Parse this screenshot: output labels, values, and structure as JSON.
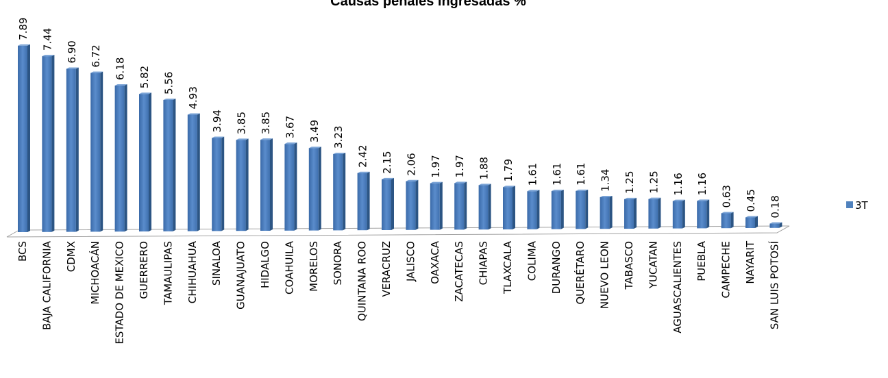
{
  "chart_data": {
    "type": "bar",
    "title": "Causas penales ingresadas %",
    "categories": [
      "BCS",
      "BAJA CALIFORNIA",
      "CDMX",
      "MICHOACÁN",
      "ESTADO DE MEXICO",
      "GUERRERO",
      "TAMAULIPAS",
      "CHIHUAHUA",
      "SINALOA",
      "GUANAJUATO",
      "HIDALGO",
      "COAHUILA",
      "MORELOS",
      "SONORA",
      "QUINTANA ROO",
      "VERACRUZ",
      "JALISCO",
      "OAXACA",
      "ZACATECAS",
      "CHIAPAS",
      "TLAXCALA",
      "COLIMA",
      "DURANGO",
      "QUERÉTARO",
      "NUEVO LEON",
      "TABASCO",
      "YUCATAN",
      "AGUASCALIENTES",
      "PUEBLA",
      "CAMPECHE",
      "NAYARIT",
      "SAN LUIS POTOSÍ"
    ],
    "series": [
      {
        "name": "3T",
        "color": "#4f81bd",
        "values": [
          7.89,
          7.44,
          6.9,
          6.72,
          6.18,
          5.82,
          5.56,
          4.93,
          3.94,
          3.85,
          3.85,
          3.67,
          3.49,
          3.23,
          2.42,
          2.15,
          2.06,
          1.97,
          1.97,
          1.88,
          1.79,
          1.61,
          1.61,
          1.61,
          1.34,
          1.25,
          1.25,
          1.16,
          1.16,
          0.63,
          0.45,
          0.18
        ],
        "value_labels": [
          "7.89",
          "7.44",
          "6.90",
          "6.72",
          "6.18",
          "5.82",
          "5.56",
          "4.93",
          "3.94",
          "3.85",
          "3.85",
          "3.67",
          "3.49",
          "3.23",
          "2.42",
          "2.15",
          "2.06",
          "1.97",
          "1.97",
          "1.88",
          "1.79",
          "1.61",
          "1.61",
          "1.61",
          "1.34",
          "1.25",
          "1.25",
          "1.16",
          "1.16",
          "0.63",
          "0.45",
          "0.18"
        ]
      }
    ],
    "legend": "right"
  }
}
